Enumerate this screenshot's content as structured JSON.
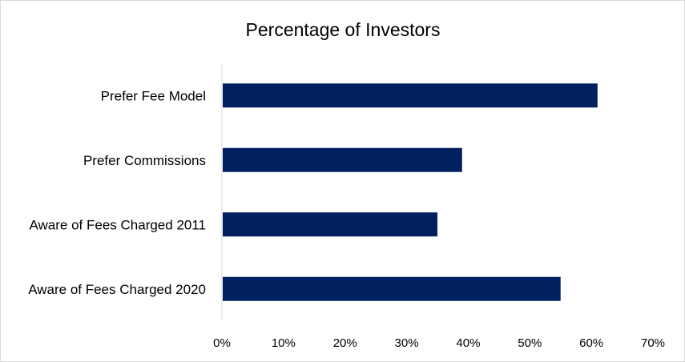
{
  "chart_data": {
    "type": "bar",
    "orientation": "horizontal",
    "title": "Percentage of Investors",
    "categories": [
      "Prefer Fee Model",
      "Prefer Commissions",
      "Aware of Fees Charged 2011",
      "Aware of Fees Charged 2020"
    ],
    "values": [
      61,
      39,
      35,
      55
    ],
    "xlim": [
      0,
      70
    ],
    "x_ticks": [
      "0%",
      "10%",
      "20%",
      "30%",
      "40%",
      "50%",
      "60%",
      "70%"
    ],
    "bar_color": "#002060",
    "grid": false,
    "legend": "none"
  }
}
